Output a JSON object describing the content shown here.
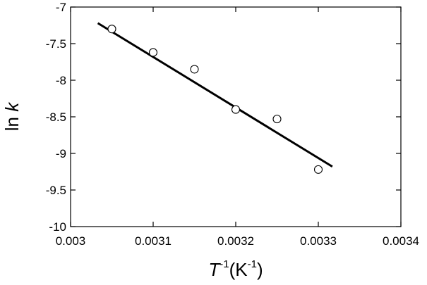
{
  "chart_data": {
    "type": "scatter",
    "xlabel_parts": {
      "main": "T",
      "sup1": "-1",
      "unit_open": "(K",
      "sup2": "-1",
      "unit_close": ")"
    },
    "ylabel_parts": {
      "main": "ln ",
      "var": "k"
    },
    "xlim": [
      0.003,
      0.0034
    ],
    "ylim": [
      -10,
      -7
    ],
    "x_ticks": [
      0.003,
      0.0031,
      0.0032,
      0.0033,
      0.0034
    ],
    "x_tick_labels": [
      "0.003",
      "0.0031",
      "0.0032",
      "0.0033",
      "0.0034"
    ],
    "y_ticks": [
      -7,
      -7.5,
      -8,
      -8.5,
      -9,
      -9.5,
      -10
    ],
    "y_tick_labels": [
      "-7",
      "-7.5",
      "-8",
      "-8.5",
      "-9",
      "-9.5",
      "-10"
    ],
    "grid": false,
    "series": [
      {
        "marker": "open-circle",
        "x": [
          0.00305,
          0.0031,
          0.00315,
          0.0032,
          0.00325,
          0.0033
        ],
        "y": [
          -7.3,
          -7.62,
          -7.85,
          -8.4,
          -8.53,
          -9.22
        ]
      }
    ],
    "fit_line": {
      "x": [
        0.003033,
        0.003317
      ],
      "y": [
        -7.22,
        -9.18
      ]
    }
  }
}
